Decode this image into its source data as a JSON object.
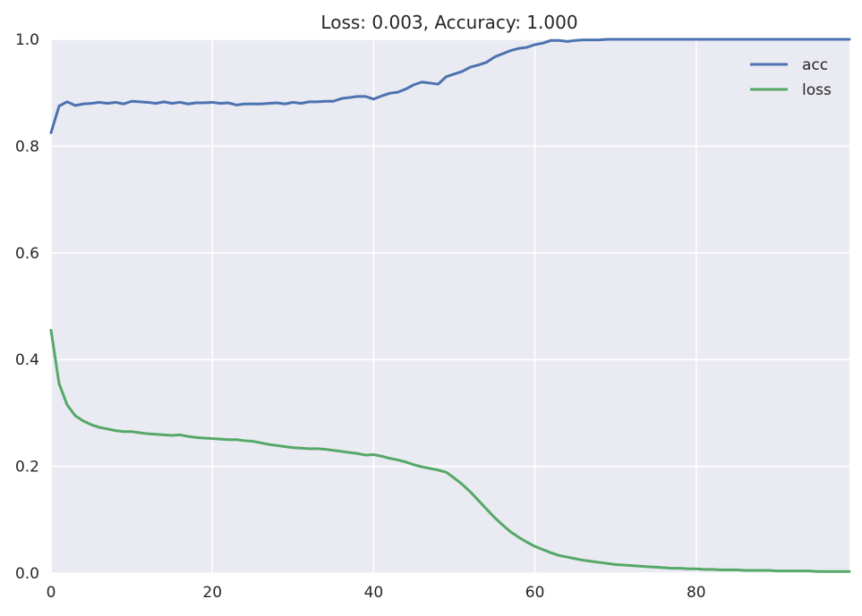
{
  "chart_data": {
    "type": "line",
    "title": "Loss: 0.003, Accuracy: 1.000",
    "xlabel": "",
    "ylabel": "",
    "xlim": [
      0,
      99
    ],
    "ylim": [
      0.0,
      1.0
    ],
    "x_ticks": [
      0,
      20,
      40,
      60,
      80
    ],
    "x_tick_labels": [
      "0",
      "20",
      "40",
      "60",
      "80"
    ],
    "y_ticks": [
      0.0,
      0.2,
      0.4,
      0.6,
      0.8,
      1.0
    ],
    "y_tick_labels": [
      "0.0",
      "0.2",
      "0.4",
      "0.6",
      "0.8",
      "1.0"
    ],
    "grid": true,
    "legend_position": "top-right",
    "background_color": "#eaeaf2",
    "series": [
      {
        "name": "acc",
        "color": "#4c72b0",
        "values": [
          0.825,
          0.875,
          0.883,
          0.876,
          0.879,
          0.88,
          0.882,
          0.88,
          0.882,
          0.879,
          0.884,
          0.883,
          0.882,
          0.88,
          0.883,
          0.88,
          0.882,
          0.879,
          0.881,
          0.881,
          0.882,
          0.88,
          0.881,
          0.877,
          0.879,
          0.879,
          0.879,
          0.88,
          0.881,
          0.879,
          0.882,
          0.88,
          0.883,
          0.883,
          0.884,
          0.884,
          0.889,
          0.891,
          0.893,
          0.893,
          0.888,
          0.894,
          0.899,
          0.901,
          0.907,
          0.915,
          0.92,
          0.918,
          0.916,
          0.93,
          0.935,
          0.94,
          0.948,
          0.952,
          0.957,
          0.967,
          0.973,
          0.979,
          0.983,
          0.985,
          0.99,
          0.993,
          0.998,
          0.998,
          0.996,
          0.998,
          0.999,
          0.999,
          0.999,
          1.0,
          1.0,
          1.0,
          1.0,
          1.0,
          1.0,
          1.0,
          1.0,
          1.0,
          1.0,
          1.0,
          1.0,
          1.0,
          1.0,
          1.0,
          1.0,
          1.0,
          1.0,
          1.0,
          1.0,
          1.0,
          1.0,
          1.0,
          1.0,
          1.0,
          1.0,
          1.0,
          1.0,
          1.0,
          1.0,
          1.0
        ]
      },
      {
        "name": "loss",
        "color": "#55a868",
        "values": [
          0.455,
          0.355,
          0.315,
          0.295,
          0.285,
          0.278,
          0.273,
          0.27,
          0.267,
          0.265,
          0.265,
          0.263,
          0.261,
          0.26,
          0.259,
          0.258,
          0.259,
          0.256,
          0.254,
          0.253,
          0.252,
          0.251,
          0.25,
          0.25,
          0.248,
          0.247,
          0.244,
          0.241,
          0.239,
          0.237,
          0.235,
          0.234,
          0.233,
          0.233,
          0.232,
          0.23,
          0.228,
          0.226,
          0.224,
          0.221,
          0.222,
          0.219,
          0.215,
          0.212,
          0.208,
          0.203,
          0.199,
          0.196,
          0.193,
          0.189,
          0.178,
          0.166,
          0.152,
          0.136,
          0.12,
          0.104,
          0.09,
          0.077,
          0.067,
          0.058,
          0.05,
          0.044,
          0.038,
          0.033,
          0.03,
          0.027,
          0.024,
          0.022,
          0.02,
          0.018,
          0.016,
          0.015,
          0.014,
          0.013,
          0.012,
          0.011,
          0.01,
          0.009,
          0.009,
          0.008,
          0.008,
          0.007,
          0.007,
          0.006,
          0.006,
          0.006,
          0.005,
          0.005,
          0.005,
          0.005,
          0.004,
          0.004,
          0.004,
          0.004,
          0.004,
          0.003,
          0.003,
          0.003,
          0.003,
          0.003
        ]
      }
    ]
  }
}
